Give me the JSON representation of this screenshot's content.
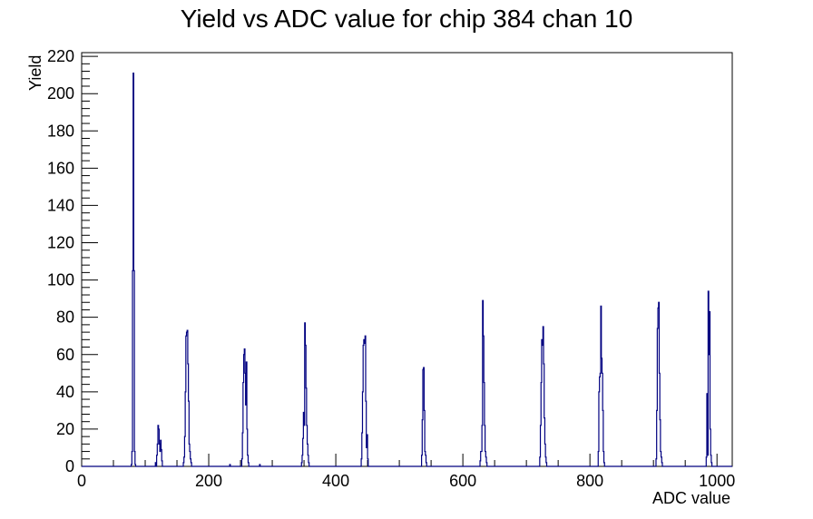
{
  "chart_data": {
    "type": "bar",
    "title": "Yield vs ADC value for chip 384 chan 10",
    "xlabel": "ADC value",
    "ylabel": "Yield",
    "xlim": [
      0,
      1024
    ],
    "ylim": [
      0,
      222
    ],
    "x_ticks": [
      0,
      200,
      400,
      600,
      800,
      1000
    ],
    "y_ticks": [
      0,
      20,
      40,
      60,
      80,
      100,
      120,
      140,
      160,
      180,
      200,
      220
    ],
    "grid": false,
    "legend": "none",
    "line_color": "#000080",
    "bins": [
      [
        78,
        1
      ],
      [
        79,
        8
      ],
      [
        80,
        105
      ],
      [
        81,
        211
      ],
      [
        82,
        105
      ],
      [
        83,
        8
      ],
      [
        84,
        1
      ],
      [
        116,
        2
      ],
      [
        118,
        6
      ],
      [
        119,
        12
      ],
      [
        120,
        22
      ],
      [
        121,
        20
      ],
      [
        122,
        12
      ],
      [
        123,
        8
      ],
      [
        124,
        14
      ],
      [
        125,
        9
      ],
      [
        126,
        3
      ],
      [
        160,
        2
      ],
      [
        161,
        5
      ],
      [
        162,
        16
      ],
      [
        163,
        40
      ],
      [
        164,
        70
      ],
      [
        165,
        72
      ],
      [
        166,
        73
      ],
      [
        167,
        55
      ],
      [
        168,
        35
      ],
      [
        169,
        12
      ],
      [
        170,
        8
      ],
      [
        171,
        4
      ],
      [
        172,
        2
      ],
      [
        252,
        4
      ],
      [
        253,
        18
      ],
      [
        254,
        45
      ],
      [
        255,
        60
      ],
      [
        256,
        63
      ],
      [
        257,
        50
      ],
      [
        258,
        33
      ],
      [
        259,
        56
      ],
      [
        260,
        20
      ],
      [
        261,
        6
      ],
      [
        262,
        2
      ],
      [
        346,
        2
      ],
      [
        347,
        6
      ],
      [
        348,
        15
      ],
      [
        349,
        29
      ],
      [
        350,
        22
      ],
      [
        351,
        77
      ],
      [
        352,
        65
      ],
      [
        353,
        42
      ],
      [
        354,
        22
      ],
      [
        355,
        12
      ],
      [
        356,
        6
      ],
      [
        357,
        2
      ],
      [
        440,
        4
      ],
      [
        441,
        18
      ],
      [
        442,
        40
      ],
      [
        443,
        65
      ],
      [
        444,
        68
      ],
      [
        445,
        66
      ],
      [
        446,
        70
      ],
      [
        447,
        35
      ],
      [
        448,
        10
      ],
      [
        449,
        17
      ],
      [
        450,
        4
      ],
      [
        535,
        6
      ],
      [
        536,
        25
      ],
      [
        537,
        52
      ],
      [
        538,
        53
      ],
      [
        539,
        30
      ],
      [
        540,
        8
      ],
      [
        541,
        6
      ],
      [
        542,
        2
      ],
      [
        627,
        3
      ],
      [
        628,
        8
      ],
      [
        629,
        8
      ],
      [
        630,
        22
      ],
      [
        631,
        89
      ],
      [
        632,
        70
      ],
      [
        633,
        45
      ],
      [
        634,
        22
      ],
      [
        635,
        8
      ],
      [
        636,
        5
      ],
      [
        637,
        2
      ],
      [
        721,
        5
      ],
      [
        722,
        22
      ],
      [
        723,
        45
      ],
      [
        724,
        68
      ],
      [
        725,
        65
      ],
      [
        726,
        75
      ],
      [
        727,
        55
      ],
      [
        728,
        26
      ],
      [
        729,
        12
      ],
      [
        730,
        5
      ],
      [
        731,
        2
      ],
      [
        813,
        8
      ],
      [
        814,
        40
      ],
      [
        815,
        48
      ],
      [
        816,
        50
      ],
      [
        817,
        86
      ],
      [
        818,
        58
      ],
      [
        819,
        50
      ],
      [
        820,
        30
      ],
      [
        821,
        8
      ],
      [
        822,
        2
      ],
      [
        904,
        4
      ],
      [
        905,
        30
      ],
      [
        906,
        74
      ],
      [
        907,
        85
      ],
      [
        908,
        88
      ],
      [
        909,
        50
      ],
      [
        910,
        25
      ],
      [
        911,
        8
      ],
      [
        912,
        5
      ],
      [
        913,
        2
      ],
      [
        983,
        5
      ],
      [
        984,
        39
      ],
      [
        985,
        6
      ],
      [
        986,
        94
      ],
      [
        987,
        60
      ],
      [
        988,
        83
      ],
      [
        989,
        20
      ],
      [
        990,
        6
      ],
      [
        991,
        2
      ],
      [
        233,
        1
      ],
      [
        280,
        1
      ]
    ]
  }
}
